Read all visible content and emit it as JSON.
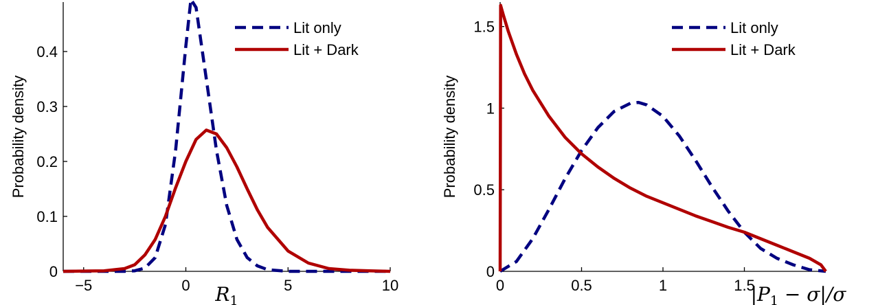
{
  "chart_data": [
    {
      "type": "line",
      "xlabel": "R",
      "xlabel_sub": "1",
      "ylabel": "Probability density",
      "xlim": [
        -6,
        10
      ],
      "ylim": [
        0,
        0.49
      ],
      "xticks": [
        -5,
        0,
        5,
        10
      ],
      "yticks": [
        0,
        0.1,
        0.2,
        0.3,
        0.4
      ],
      "grid": false,
      "legend_position": "top-right",
      "series": [
        {
          "name": "Lit only",
          "style": "dashed",
          "color": "#000080",
          "x": [
            -6,
            -3,
            -2.5,
            -2,
            -1.5,
            -1,
            -0.5,
            0,
            0.25,
            0.5,
            1,
            1.5,
            2,
            2.5,
            3,
            3.5,
            4,
            5,
            6,
            8,
            10
          ],
          "y": [
            0,
            0,
            0.001,
            0.006,
            0.025,
            0.085,
            0.22,
            0.41,
            0.495,
            0.48,
            0.35,
            0.22,
            0.12,
            0.058,
            0.025,
            0.01,
            0.003,
            0,
            0,
            0,
            0
          ]
        },
        {
          "name": "Lit + Dark",
          "style": "solid",
          "color": "#b00000",
          "x": [
            -6,
            -4,
            -3,
            -2.5,
            -2,
            -1.5,
            -1,
            -0.5,
            0,
            0.5,
            1,
            1.5,
            2,
            2.5,
            3,
            3.5,
            4,
            5,
            6,
            7,
            8,
            9,
            10
          ],
          "y": [
            0,
            0.001,
            0.005,
            0.012,
            0.03,
            0.058,
            0.1,
            0.152,
            0.2,
            0.24,
            0.257,
            0.25,
            0.225,
            0.19,
            0.15,
            0.112,
            0.08,
            0.037,
            0.015,
            0.005,
            0.002,
            0.001,
            0
          ]
        }
      ]
    },
    {
      "type": "line",
      "xlabel": "|P1 − σ|/σ",
      "xlabel_main": "|P",
      "xlabel_sub": "1",
      "xlabel_rest": " − σ|/σ",
      "ylabel": "Probability density",
      "xlim": [
        0,
        2
      ],
      "ylim": [
        0,
        1.65
      ],
      "xticks": [
        0,
        0.5,
        1,
        1.5
      ],
      "yticks": [
        0,
        0.5,
        1,
        1.5
      ],
      "grid": false,
      "legend_position": "top-right",
      "series": [
        {
          "name": "Lit only",
          "style": "dashed",
          "color": "#000080",
          "x": [
            0,
            0.1,
            0.2,
            0.3,
            0.4,
            0.5,
            0.6,
            0.7,
            0.8,
            0.85,
            0.9,
            1.0,
            1.1,
            1.2,
            1.3,
            1.4,
            1.5,
            1.6,
            1.7,
            1.8,
            1.9,
            2.0
          ],
          "y": [
            0,
            0.06,
            0.2,
            0.38,
            0.57,
            0.74,
            0.88,
            0.98,
            1.03,
            1.035,
            1.02,
            0.95,
            0.83,
            0.68,
            0.52,
            0.37,
            0.24,
            0.14,
            0.08,
            0.04,
            0.01,
            0
          ]
        },
        {
          "name": "Lit + Dark",
          "style": "solid",
          "color": "#b00000",
          "x": [
            0,
            0.003,
            0.02,
            0.05,
            0.1,
            0.15,
            0.2,
            0.3,
            0.4,
            0.5,
            0.6,
            0.7,
            0.8,
            0.9,
            1.0,
            1.1,
            1.2,
            1.3,
            1.4,
            1.5,
            1.6,
            1.7,
            1.8,
            1.9,
            1.97,
            2.0
          ],
          "y": [
            0,
            1.63,
            1.57,
            1.47,
            1.33,
            1.21,
            1.11,
            0.95,
            0.82,
            0.72,
            0.64,
            0.57,
            0.51,
            0.46,
            0.42,
            0.38,
            0.34,
            0.305,
            0.27,
            0.24,
            0.2,
            0.16,
            0.12,
            0.08,
            0.04,
            0
          ]
        }
      ]
    }
  ]
}
